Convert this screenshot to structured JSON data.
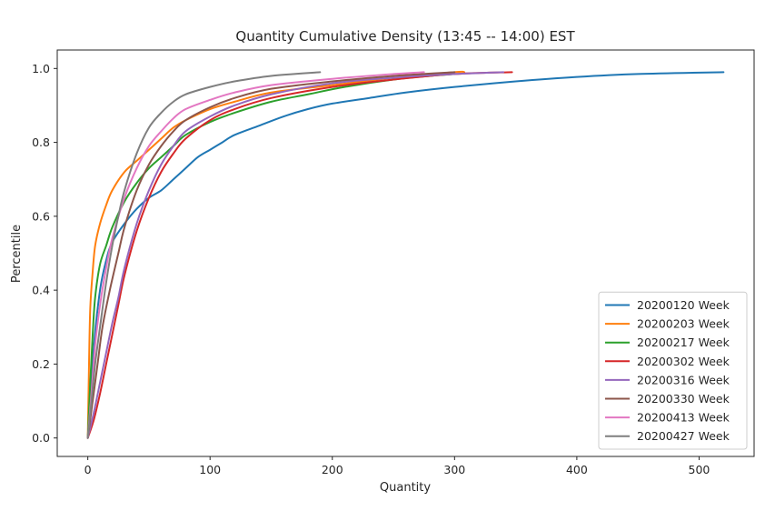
{
  "chart_data": {
    "type": "line",
    "title": "Quantity Cumulative Density  (13:45 -- 14:00) EST",
    "xlabel": "Quantity",
    "ylabel": "Percentile",
    "xlim": [
      -25,
      545
    ],
    "ylim": [
      -0.05,
      1.05
    ],
    "xticks": [
      0,
      100,
      200,
      300,
      400,
      500
    ],
    "xtick_labels": [
      "0",
      "100",
      "200",
      "300",
      "400",
      "500"
    ],
    "yticks": [
      0.0,
      0.2,
      0.4,
      0.6,
      0.8,
      1.0
    ],
    "ytick_labels": [
      "0.0",
      "0.2",
      "0.4",
      "0.6",
      "0.8",
      "1.0"
    ],
    "grid": false,
    "legend_position": "lower right",
    "series": [
      {
        "name": "20200120 Week",
        "color": "#1f77b4",
        "points": [
          [
            0,
            0
          ],
          [
            2,
            0.1
          ],
          [
            5,
            0.25
          ],
          [
            10,
            0.4
          ],
          [
            15,
            0.48
          ],
          [
            20,
            0.53
          ],
          [
            30,
            0.58
          ],
          [
            40,
            0.62
          ],
          [
            50,
            0.65
          ],
          [
            60,
            0.67
          ],
          [
            70,
            0.7
          ],
          [
            80,
            0.73
          ],
          [
            90,
            0.76
          ],
          [
            100,
            0.78
          ],
          [
            110,
            0.8
          ],
          [
            120,
            0.82
          ],
          [
            140,
            0.845
          ],
          [
            160,
            0.87
          ],
          [
            180,
            0.89
          ],
          [
            200,
            0.905
          ],
          [
            230,
            0.92
          ],
          [
            260,
            0.935
          ],
          [
            300,
            0.95
          ],
          [
            350,
            0.965
          ],
          [
            400,
            0.977
          ],
          [
            450,
            0.985
          ],
          [
            520,
            0.99
          ]
        ]
      },
      {
        "name": "20200203 Week",
        "color": "#ff7f0e",
        "points": [
          [
            0,
            0
          ],
          [
            1,
            0.2
          ],
          [
            2,
            0.35
          ],
          [
            4,
            0.45
          ],
          [
            6,
            0.52
          ],
          [
            10,
            0.58
          ],
          [
            15,
            0.63
          ],
          [
            20,
            0.67
          ],
          [
            30,
            0.72
          ],
          [
            40,
            0.75
          ],
          [
            50,
            0.78
          ],
          [
            60,
            0.81
          ],
          [
            70,
            0.84
          ],
          [
            80,
            0.86
          ],
          [
            100,
            0.89
          ],
          [
            120,
            0.91
          ],
          [
            150,
            0.935
          ],
          [
            200,
            0.955
          ],
          [
            250,
            0.975
          ],
          [
            300,
            0.99
          ],
          [
            308,
            0.99
          ]
        ]
      },
      {
        "name": "20200217 Week",
        "color": "#2ca02c",
        "points": [
          [
            0,
            0
          ],
          [
            2,
            0.15
          ],
          [
            4,
            0.28
          ],
          [
            6,
            0.38
          ],
          [
            10,
            0.47
          ],
          [
            15,
            0.52
          ],
          [
            20,
            0.57
          ],
          [
            30,
            0.64
          ],
          [
            40,
            0.69
          ],
          [
            50,
            0.73
          ],
          [
            60,
            0.76
          ],
          [
            70,
            0.79
          ],
          [
            80,
            0.82
          ],
          [
            100,
            0.855
          ],
          [
            120,
            0.88
          ],
          [
            150,
            0.91
          ],
          [
            180,
            0.93
          ],
          [
            210,
            0.95
          ],
          [
            250,
            0.97
          ],
          [
            280,
            0.98
          ],
          [
            300,
            0.985
          ]
        ]
      },
      {
        "name": "20200302 Week",
        "color": "#d62728",
        "points": [
          [
            0,
            0
          ],
          [
            5,
            0.05
          ],
          [
            10,
            0.12
          ],
          [
            15,
            0.2
          ],
          [
            20,
            0.28
          ],
          [
            25,
            0.36
          ],
          [
            30,
            0.44
          ],
          [
            40,
            0.56
          ],
          [
            50,
            0.65
          ],
          [
            60,
            0.72
          ],
          [
            70,
            0.77
          ],
          [
            80,
            0.81
          ],
          [
            100,
            0.86
          ],
          [
            120,
            0.89
          ],
          [
            150,
            0.92
          ],
          [
            200,
            0.95
          ],
          [
            250,
            0.97
          ],
          [
            300,
            0.985
          ],
          [
            347,
            0.99
          ]
        ]
      },
      {
        "name": "20200316 Week",
        "color": "#9467bd",
        "points": [
          [
            0,
            0
          ],
          [
            5,
            0.07
          ],
          [
            10,
            0.15
          ],
          [
            15,
            0.23
          ],
          [
            20,
            0.31
          ],
          [
            25,
            0.38
          ],
          [
            30,
            0.46
          ],
          [
            40,
            0.58
          ],
          [
            50,
            0.67
          ],
          [
            60,
            0.74
          ],
          [
            70,
            0.79
          ],
          [
            80,
            0.83
          ],
          [
            100,
            0.87
          ],
          [
            120,
            0.9
          ],
          [
            150,
            0.93
          ],
          [
            200,
            0.96
          ],
          [
            250,
            0.975
          ],
          [
            300,
            0.985
          ],
          [
            340,
            0.99
          ]
        ]
      },
      {
        "name": "20200330 Week",
        "color": "#8c564b",
        "points": [
          [
            0,
            0
          ],
          [
            4,
            0.1
          ],
          [
            8,
            0.2
          ],
          [
            12,
            0.3
          ],
          [
            18,
            0.4
          ],
          [
            25,
            0.5
          ],
          [
            30,
            0.57
          ],
          [
            40,
            0.67
          ],
          [
            50,
            0.74
          ],
          [
            60,
            0.79
          ],
          [
            70,
            0.83
          ],
          [
            80,
            0.86
          ],
          [
            100,
            0.895
          ],
          [
            120,
            0.92
          ],
          [
            150,
            0.945
          ],
          [
            200,
            0.965
          ],
          [
            250,
            0.98
          ],
          [
            300,
            0.99
          ]
        ]
      },
      {
        "name": "20200413 Week",
        "color": "#e377c2",
        "points": [
          [
            0,
            0
          ],
          [
            3,
            0.12
          ],
          [
            6,
            0.25
          ],
          [
            10,
            0.36
          ],
          [
            15,
            0.46
          ],
          [
            20,
            0.54
          ],
          [
            30,
            0.65
          ],
          [
            40,
            0.73
          ],
          [
            50,
            0.79
          ],
          [
            60,
            0.83
          ],
          [
            70,
            0.865
          ],
          [
            80,
            0.89
          ],
          [
            100,
            0.915
          ],
          [
            120,
            0.935
          ],
          [
            150,
            0.955
          ],
          [
            200,
            0.972
          ],
          [
            250,
            0.985
          ],
          [
            275,
            0.99
          ]
        ]
      },
      {
        "name": "20200427 Week",
        "color": "#7f7f7f",
        "points": [
          [
            0,
            0
          ],
          [
            3,
            0.1
          ],
          [
            6,
            0.2
          ],
          [
            10,
            0.3
          ],
          [
            15,
            0.42
          ],
          [
            20,
            0.52
          ],
          [
            25,
            0.6
          ],
          [
            30,
            0.67
          ],
          [
            40,
            0.77
          ],
          [
            50,
            0.84
          ],
          [
            60,
            0.88
          ],
          [
            70,
            0.91
          ],
          [
            80,
            0.93
          ],
          [
            100,
            0.95
          ],
          [
            120,
            0.965
          ],
          [
            150,
            0.98
          ],
          [
            190,
            0.99
          ]
        ]
      }
    ]
  }
}
